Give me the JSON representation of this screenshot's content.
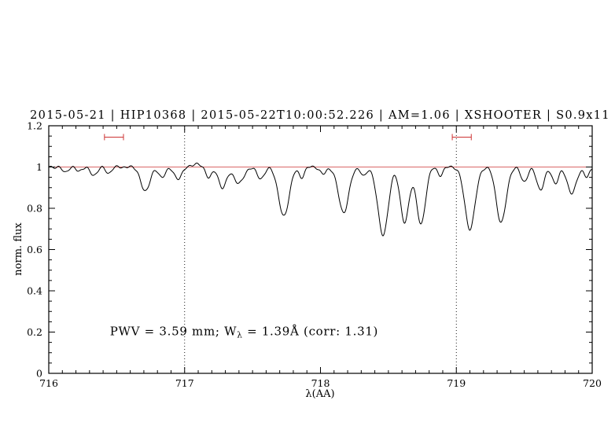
{
  "title": "2015-05-21 | HIP10368 | 2015-05-22T10:00:52.226 | AM=1.06 | XSHOOTER | S0.9x11",
  "colors": {
    "title_blue": "#0000cd",
    "annotation_blue": "#0000cd",
    "continuum_red": "#cd3333",
    "marker_red": "#cd3333",
    "spectrum_black": "#000000"
  },
  "annotation": {
    "prefix": "PWV  =  3.59 mm;  W",
    "sub": "λ",
    "suffix": "  =  1.39Å  (corr: 1.31)"
  },
  "chart_data": {
    "type": "line",
    "title": "2015-05-21 | HIP10368 | 2015-05-22T10:00:52.226 | AM=1.06 | XSHOOTER | S0.9x11",
    "xlabel": "λ(AA)",
    "ylabel": "norm. flux",
    "xlim": [
      716,
      720
    ],
    "ylim": [
      0,
      1.2
    ],
    "x_major_ticks": [
      716,
      717,
      718,
      719,
      720
    ],
    "x_tick_labels": [
      "716",
      "717",
      "718",
      "719",
      "720"
    ],
    "x_minor_step": 0.1,
    "y_major_ticks": [
      0,
      0.2,
      0.4,
      0.6,
      0.8,
      1,
      1.2
    ],
    "y_tick_labels": [
      "0",
      "0.2",
      "0.4",
      "0.6",
      "0.8",
      "1",
      "1.2"
    ],
    "y_minor_step": 0.05,
    "grid": false,
    "legend": "none",
    "continuum_level": 1.0,
    "dotted_vlines": [
      717,
      719
    ],
    "range_markers": [
      {
        "x1": 716.41,
        "x2": 716.55,
        "y": 1.145
      },
      {
        "x1": 718.97,
        "x2": 719.11,
        "y": 1.145
      }
    ],
    "annotation": {
      "x": 716.45,
      "y": 0.185,
      "text": "PWV = 3.59 mm; W_λ = 1.39Å (corr: 1.31)"
    },
    "absorption_lines": [
      {
        "center": 716.12,
        "depth": 0.025,
        "sigma": 0.02
      },
      {
        "center": 716.22,
        "depth": 0.02,
        "sigma": 0.02
      },
      {
        "center": 716.33,
        "depth": 0.04,
        "sigma": 0.025
      },
      {
        "center": 716.44,
        "depth": 0.03,
        "sigma": 0.02
      },
      {
        "center": 716.71,
        "depth": 0.12,
        "sigma": 0.032
      },
      {
        "center": 716.83,
        "depth": 0.05,
        "sigma": 0.025
      },
      {
        "center": 716.95,
        "depth": 0.055,
        "sigma": 0.03
      },
      {
        "center": 717.08,
        "depth": -0.015,
        "sigma": 0.03
      },
      {
        "center": 717.18,
        "depth": 0.05,
        "sigma": 0.022
      },
      {
        "center": 717.28,
        "depth": 0.1,
        "sigma": 0.03
      },
      {
        "center": 717.4,
        "depth": 0.08,
        "sigma": 0.035
      },
      {
        "center": 717.56,
        "depth": 0.055,
        "sigma": 0.028
      },
      {
        "center": 717.73,
        "depth": 0.24,
        "sigma": 0.038
      },
      {
        "center": 717.86,
        "depth": 0.05,
        "sigma": 0.02
      },
      {
        "center": 718.02,
        "depth": 0.035,
        "sigma": 0.022
      },
      {
        "center": 718.17,
        "depth": 0.22,
        "sigma": 0.038
      },
      {
        "center": 718.32,
        "depth": 0.045,
        "sigma": 0.02
      },
      {
        "center": 718.46,
        "depth": 0.33,
        "sigma": 0.038
      },
      {
        "center": 718.62,
        "depth": 0.27,
        "sigma": 0.032
      },
      {
        "center": 718.74,
        "depth": 0.28,
        "sigma": 0.032
      },
      {
        "center": 718.88,
        "depth": 0.04,
        "sigma": 0.02
      },
      {
        "center": 719.1,
        "depth": 0.3,
        "sigma": 0.038
      },
      {
        "center": 719.33,
        "depth": 0.27,
        "sigma": 0.036
      },
      {
        "center": 719.5,
        "depth": 0.07,
        "sigma": 0.025
      },
      {
        "center": 719.62,
        "depth": 0.11,
        "sigma": 0.028
      },
      {
        "center": 719.73,
        "depth": 0.08,
        "sigma": 0.024
      },
      {
        "center": 719.85,
        "depth": 0.13,
        "sigma": 0.032
      },
      {
        "center": 719.96,
        "depth": 0.05,
        "sigma": 0.02
      }
    ],
    "noise": [
      {
        "amp": 0.004,
        "freq": 117.3,
        "phase": 0.0
      },
      {
        "amp": 0.003,
        "freq": 61.7,
        "phase": 2.1
      }
    ],
    "sample_step": 0.004
  }
}
